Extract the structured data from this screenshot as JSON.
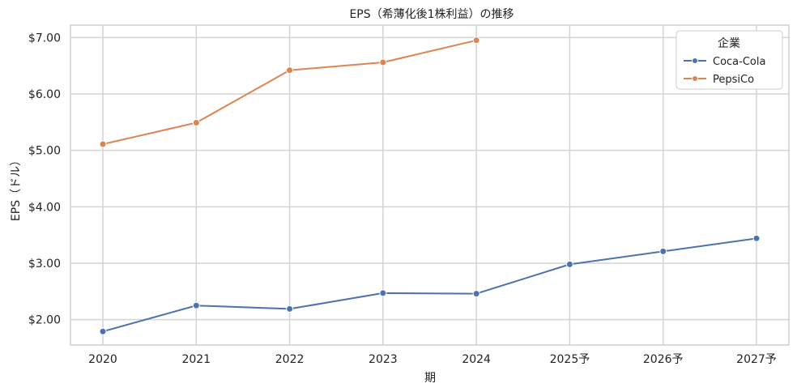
{
  "chart_data": {
    "type": "line",
    "title": "EPS（希薄化後1株利益）の推移",
    "xlabel": "期",
    "ylabel": "EPS（ドル）",
    "categories": [
      "2020",
      "2021",
      "2022",
      "2023",
      "2024",
      "2025予",
      "2026予",
      "2027予"
    ],
    "ylim": [
      1.55,
      7.22
    ],
    "yticks": [
      2.0,
      3.0,
      4.0,
      5.0,
      6.0,
      7.0
    ],
    "ytick_labels": [
      "$2.00",
      "$3.00",
      "$4.00",
      "$5.00",
      "$6.00",
      "$7.00"
    ],
    "grid": true,
    "legend_title": "企業",
    "legend_position": "top-right",
    "series": [
      {
        "name": "Coca-Cola",
        "color": "#4c72b0",
        "values": [
          1.79,
          2.25,
          2.19,
          2.47,
          2.46,
          2.98,
          3.21,
          3.44
        ]
      },
      {
        "name": "PepsiCo",
        "color": "#dd8452",
        "values": [
          5.11,
          5.49,
          6.42,
          6.56,
          6.95,
          null,
          null,
          null
        ]
      }
    ]
  }
}
